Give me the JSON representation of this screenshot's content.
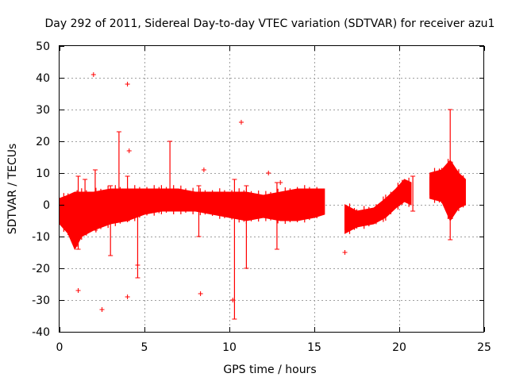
{
  "chart_data": {
    "type": "scatter",
    "title": "Day 292 of 2011, Sidereal Day-to-day VTEC variation (SDTVAR) for receiver azu1",
    "xlabel": "GPS time / hours",
    "ylabel": "SDTVAR / TECUs",
    "xlim": [
      0,
      25
    ],
    "ylim": [
      -40,
      50
    ],
    "xticks": [
      0,
      5,
      10,
      15,
      20,
      25
    ],
    "yticks": [
      -40,
      -30,
      -20,
      -10,
      0,
      10,
      20,
      30,
      40,
      50
    ],
    "grid": true,
    "marker": "+",
    "color": "#ff0000",
    "series": [
      {
        "name": "azu1",
        "band": [
          {
            "x": 0.0,
            "lo": -6,
            "hi": 2
          },
          {
            "x": 0.5,
            "lo": -9,
            "hi": 3
          },
          {
            "x": 0.9,
            "lo": -14,
            "hi": 4
          },
          {
            "x": 1.3,
            "lo": -10,
            "hi": 4
          },
          {
            "x": 2.0,
            "lo": -8,
            "hi": 4
          },
          {
            "x": 3.0,
            "lo": -6,
            "hi": 5
          },
          {
            "x": 4.0,
            "lo": -5,
            "hi": 5
          },
          {
            "x": 5.0,
            "lo": -3,
            "hi": 5
          },
          {
            "x": 6.0,
            "lo": -2,
            "hi": 5
          },
          {
            "x": 7.0,
            "lo": -2,
            "hi": 5
          },
          {
            "x": 8.0,
            "lo": -2,
            "hi": 4
          },
          {
            "x": 9.0,
            "lo": -3,
            "hi": 4
          },
          {
            "x": 10.0,
            "lo": -4,
            "hi": 4
          },
          {
            "x": 11.0,
            "lo": -5,
            "hi": 4
          },
          {
            "x": 12.0,
            "lo": -4,
            "hi": 3
          },
          {
            "x": 13.0,
            "lo": -5,
            "hi": 4
          },
          {
            "x": 14.0,
            "lo": -5,
            "hi": 5
          },
          {
            "x": 15.0,
            "lo": -4,
            "hi": 5
          },
          {
            "x": 15.6,
            "lo": -3,
            "hi": 5
          },
          {
            "gap": true
          },
          {
            "x": 16.8,
            "lo": -9,
            "hi": 0
          },
          {
            "x": 17.5,
            "lo": -7,
            "hi": -2
          },
          {
            "x": 18.5,
            "lo": -6,
            "hi": -1
          },
          {
            "x": 19.2,
            "lo": -4,
            "hi": 2
          },
          {
            "x": 19.8,
            "lo": -1,
            "hi": 5
          },
          {
            "x": 20.3,
            "lo": 1,
            "hi": 8
          },
          {
            "x": 20.7,
            "lo": 0,
            "hi": 7
          },
          {
            "gap": true
          },
          {
            "x": 21.8,
            "lo": 2,
            "hi": 10
          },
          {
            "x": 22.5,
            "lo": 1,
            "hi": 11
          },
          {
            "x": 23.0,
            "lo": -5,
            "hi": 14
          },
          {
            "x": 23.5,
            "lo": -1,
            "hi": 10
          },
          {
            "x": 23.9,
            "lo": 0,
            "hi": 8
          }
        ],
        "spikes": [
          {
            "x": 1.1,
            "lo": -14,
            "hi": 9
          },
          {
            "x": 1.5,
            "lo": -9,
            "hi": 8
          },
          {
            "x": 2.1,
            "lo": -8,
            "hi": 11
          },
          {
            "x": 3.0,
            "lo": -16,
            "hi": 6
          },
          {
            "x": 3.5,
            "lo": -3,
            "hi": 23
          },
          {
            "x": 4.0,
            "lo": -5,
            "hi": 9
          },
          {
            "x": 4.6,
            "lo": -23,
            "hi": 5
          },
          {
            "x": 6.5,
            "lo": -1,
            "hi": 20
          },
          {
            "x": 8.2,
            "lo": -10,
            "hi": 6
          },
          {
            "x": 10.3,
            "lo": -36,
            "hi": 8
          },
          {
            "x": 11.0,
            "lo": -20,
            "hi": 6
          },
          {
            "x": 12.8,
            "lo": -14,
            "hi": 7
          },
          {
            "x": 23.0,
            "lo": -11,
            "hi": 30
          },
          {
            "x": 20.8,
            "lo": -2,
            "hi": 9
          }
        ],
        "outliers": [
          {
            "x": 2.0,
            "y": 41
          },
          {
            "x": 4.0,
            "y": 38
          },
          {
            "x": 4.1,
            "y": 17
          },
          {
            "x": 1.1,
            "y": -27
          },
          {
            "x": 2.5,
            "y": -33
          },
          {
            "x": 4.0,
            "y": -29
          },
          {
            "x": 4.6,
            "y": -19
          },
          {
            "x": 8.3,
            "y": -28
          },
          {
            "x": 10.7,
            "y": 26
          },
          {
            "x": 16.8,
            "y": -15
          },
          {
            "x": 8.5,
            "y": 11
          },
          {
            "x": 10.2,
            "y": -30
          },
          {
            "x": 12.3,
            "y": 10
          },
          {
            "x": 13.0,
            "y": 7
          }
        ]
      }
    ]
  }
}
